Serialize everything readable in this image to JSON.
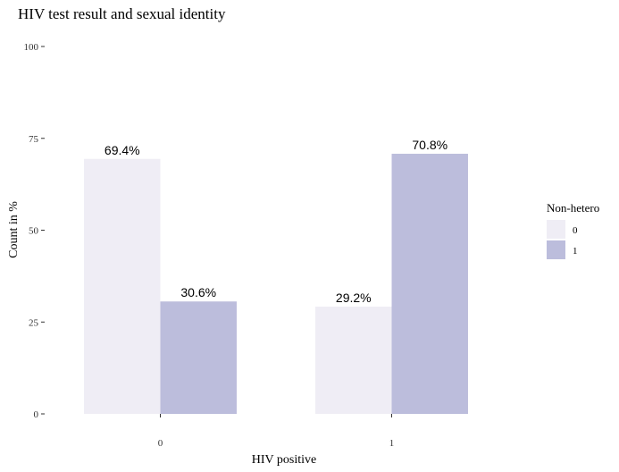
{
  "chart_data": {
    "type": "bar",
    "title": "HIV test result and sexual identity",
    "xlabel": "HIV positive",
    "ylabel": "Count in %",
    "categories": [
      "0",
      "1"
    ],
    "ylim": [
      0,
      100
    ],
    "yticks": [
      0,
      25,
      50,
      75,
      100
    ],
    "grid": false,
    "legend": {
      "title": "Non-hetero",
      "placement": "right",
      "entries": [
        "0",
        "1"
      ]
    },
    "series": [
      {
        "name": "0",
        "color": "#EFEDF5",
        "values": [
          69.4,
          29.2
        ],
        "labels": [
          "69.4%",
          "29.2%"
        ]
      },
      {
        "name": "1",
        "color": "#BCBDDC",
        "values": [
          30.6,
          70.8
        ],
        "labels": [
          "30.6%",
          "70.8%"
        ]
      }
    ]
  }
}
